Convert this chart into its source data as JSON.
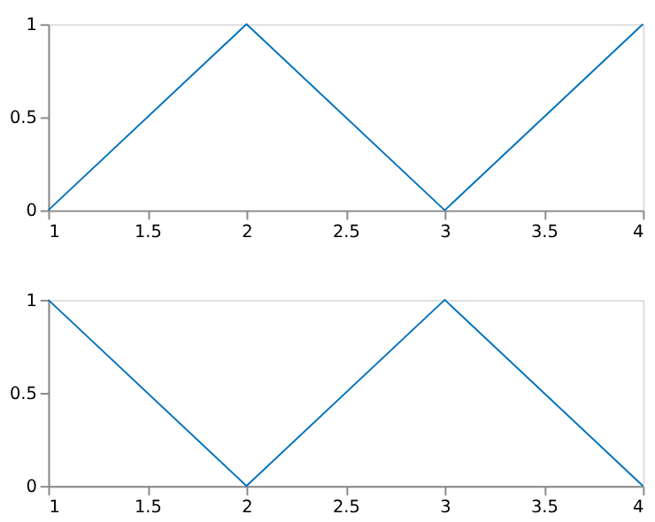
{
  "chart_data": [
    {
      "type": "line",
      "x": [
        1,
        2,
        3,
        4
      ],
      "series": [
        {
          "color": "#0072bd",
          "values": [
            0,
            1,
            0,
            1
          ]
        }
      ],
      "xlim": [
        1,
        4
      ],
      "xticks": [
        1,
        1.5,
        2,
        2.5,
        3,
        3.5,
        4
      ],
      "ylim": [
        0,
        1
      ],
      "yticks": [
        0,
        0.5,
        1
      ],
      "grid": false,
      "marker": "none",
      "line_style": "solid"
    },
    {
      "type": "line",
      "x": [
        1,
        2,
        3,
        4
      ],
      "series": [
        {
          "color": "#0072bd",
          "values": [
            1,
            0,
            1,
            0
          ]
        }
      ],
      "xlim": [
        1,
        4
      ],
      "xticks": [
        1,
        1.5,
        2,
        2.5,
        3,
        3.5,
        4
      ],
      "ylim": [
        0,
        1
      ],
      "yticks": [
        0,
        0.5,
        1
      ],
      "grid": false,
      "marker": "none",
      "line_style": "solid"
    }
  ]
}
